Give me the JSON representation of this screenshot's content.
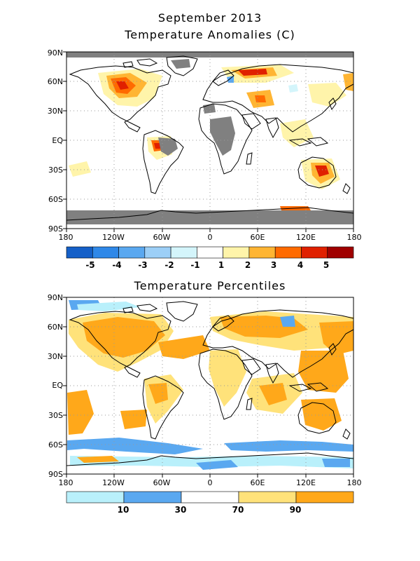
{
  "header": {
    "line1": "September 2013",
    "line2": "Temperature Anomalies (C)"
  },
  "map_axes": {
    "lat_ticks": [
      "90N",
      "60N",
      "30N",
      "EQ",
      "30S",
      "60S",
      "90S"
    ],
    "lon_ticks": [
      "180",
      "120W",
      "60W",
      "0",
      "60E",
      "120E",
      "180"
    ]
  },
  "anomaly_colorbar": {
    "colors": [
      "#1560c8",
      "#2f88e8",
      "#5aa8f0",
      "#9ccff7",
      "#d4f5fb",
      "#ffffff",
      "#fff4aa",
      "#ffb533",
      "#ff6a00",
      "#e02000",
      "#a00000"
    ],
    "labels": [
      "-5",
      "-4",
      "-3",
      "-2",
      "-1",
      "1",
      "2",
      "3",
      "4",
      "5"
    ]
  },
  "percentile_panel": {
    "title": "Temperature Percentiles",
    "colorbar": {
      "colors": [
        "#b9f0fb",
        "#5aa8f0",
        "#ffffff",
        "#ffe27a",
        "#ffa81a"
      ],
      "labels": [
        "10",
        "30",
        "70",
        "90"
      ]
    }
  },
  "colors": {
    "no_data_gray": "#808080",
    "land_outline": "#000000",
    "grid_dots": "#9a9a9a"
  }
}
